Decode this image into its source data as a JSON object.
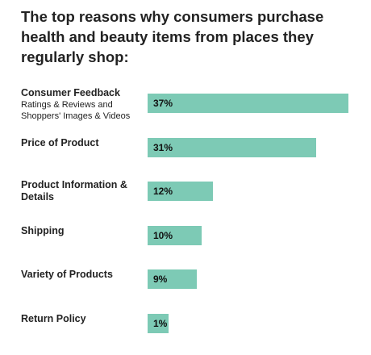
{
  "chart_data": {
    "type": "bar",
    "orientation": "horizontal",
    "title": "The top reasons why consumers purchase health and beauty items from places they regularly shop:",
    "categories": [
      {
        "label": "Consumer Feedback",
        "sublabel": "Ratings & Reviews and Shoppers' Images & Videos",
        "value": 37,
        "value_label": "37%"
      },
      {
        "label": "Price of Product",
        "sublabel": "",
        "value": 31,
        "value_label": "31%"
      },
      {
        "label": "Product Information & Details",
        "sublabel": "",
        "value": 12,
        "value_label": "12%"
      },
      {
        "label": "Shipping",
        "sublabel": "",
        "value": 10,
        "value_label": "10%"
      },
      {
        "label": "Variety of Products",
        "sublabel": "",
        "value": 9,
        "value_label": "9%"
      },
      {
        "label": "Return Policy",
        "sublabel": "",
        "value": 1,
        "value_label": "1%"
      }
    ],
    "bar_color": "#7dcab5",
    "xlim": [
      0,
      37
    ],
    "grid": false,
    "legend": "none"
  }
}
